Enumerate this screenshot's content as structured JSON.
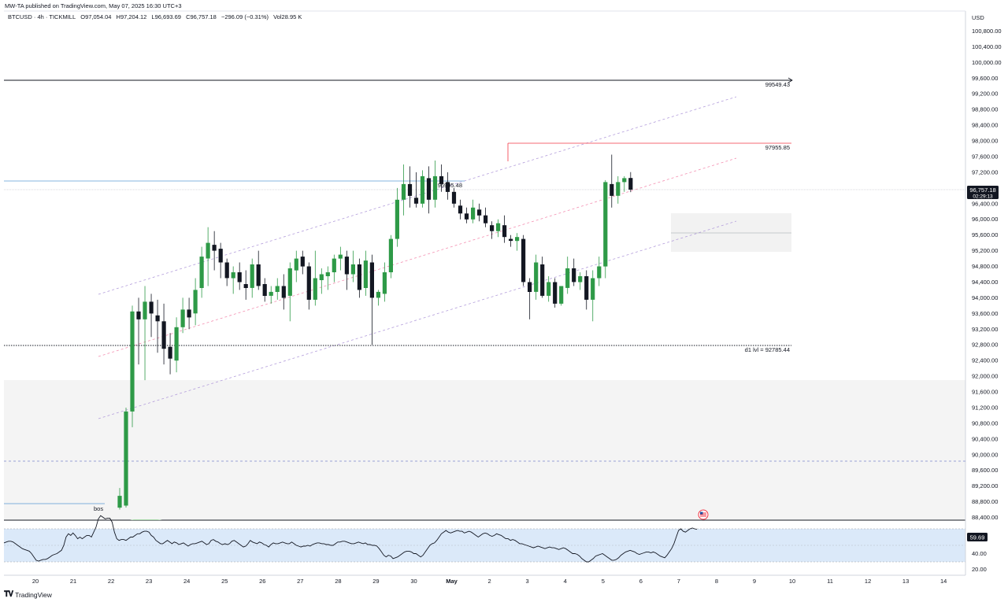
{
  "header": {
    "published": "MW-TA published on TradingView.com, May 07, 2025 16:30 UTC+3",
    "symbol": "BTCUSD · 4h · TICKMILL",
    "open": "O97,054.04",
    "high": "H97,204.12",
    "low": "L96,693.69",
    "close": "C96,757.18",
    "change": "−296.09 (−0.31%)",
    "volume": "Vol28.95 K"
  },
  "price_axis": {
    "currency": "USD",
    "ticks": [
      "100,800.00",
      "100,400.00",
      "100,000.00",
      "99,600.00",
      "99,200.00",
      "98,800.00",
      "98,400.00",
      "98,000.00",
      "97,600.00",
      "97,200.00",
      "96,400.00",
      "96,000.00",
      "95,600.00",
      "95,200.00",
      "94,800.00",
      "94,400.00",
      "94,000.00",
      "93,600.00",
      "93,200.00",
      "92,800.00",
      "92,400.00",
      "92,000.00",
      "91,600.00",
      "91,200.00",
      "90,800.00",
      "90,400.00",
      "90,000.00",
      "89,600.00",
      "89,200.00",
      "88,800.00",
      "88,400.00"
    ],
    "current_price": "96,757.18",
    "countdown": "02:29:13"
  },
  "rsi_axis": {
    "ticks": [
      "40.00",
      "20.00"
    ],
    "current": "59.69"
  },
  "time_axis": {
    "labels": [
      "20",
      "21",
      "22",
      "23",
      "24",
      "25",
      "26",
      "27",
      "28",
      "29",
      "30",
      "May",
      "2",
      "3",
      "4",
      "5",
      "6",
      "7",
      "8",
      "9",
      "10",
      "11",
      "12",
      "13",
      "14"
    ]
  },
  "annotations": {
    "level_high": "99549.43",
    "level_red": "97955.85",
    "level_blue": "96995.48",
    "level_d1": "d1 lvl = 92785.44",
    "bos": "bos"
  },
  "colors": {
    "up": "#2e9a47",
    "down": "#131722",
    "accent_blue": "#2962ff",
    "red_line": "#f23645",
    "rsi_band": "#dbe9f9"
  },
  "footer": {
    "brand": "TradingView"
  },
  "chart_data": {
    "type": "candlestick",
    "title": "BTCUSD · 4h · TICKMILL",
    "y_unit": "USD",
    "ylim": [
      88300,
      101050
    ],
    "x_labels": [
      "20",
      "21",
      "22",
      "23",
      "24",
      "25",
      "26",
      "27",
      "28",
      "29",
      "30",
      "May",
      "2",
      "3",
      "4",
      "5",
      "6",
      "7",
      "8",
      "9",
      "10",
      "11",
      "12",
      "13",
      "14"
    ],
    "candles": [
      [
        88650,
        89150,
        88600,
        88950
      ],
      [
        88700,
        91200,
        88650,
        91100
      ],
      [
        91100,
        93800,
        90700,
        93650
      ],
      [
        93650,
        94000,
        92300,
        93450
      ],
      [
        93450,
        94300,
        91900,
        93900
      ],
      [
        93900,
        94100,
        93000,
        93600
      ],
      [
        93550,
        93950,
        92600,
        93400
      ],
      [
        93400,
        93850,
        92300,
        92700
      ],
      [
        92750,
        93100,
        92050,
        92450
      ],
      [
        92400,
        93500,
        92100,
        93250
      ],
      [
        93250,
        94000,
        93100,
        93700
      ],
      [
        93700,
        94000,
        93200,
        93500
      ],
      [
        93600,
        94500,
        93300,
        94200
      ],
      [
        94250,
        95300,
        94000,
        95050
      ],
      [
        95000,
        95800,
        94300,
        95400
      ],
      [
        95350,
        95700,
        94700,
        95200
      ],
      [
        95250,
        95400,
        94500,
        94900
      ],
      [
        94900,
        95000,
        94300,
        94500
      ],
      [
        94500,
        94800,
        94100,
        94650
      ],
      [
        94650,
        94900,
        94200,
        94400
      ],
      [
        94350,
        94700,
        93950,
        94250
      ],
      [
        94250,
        95000,
        94000,
        94850
      ],
      [
        94850,
        95200,
        94200,
        94300
      ],
      [
        94350,
        94500,
        93900,
        94050
      ],
      [
        94050,
        94300,
        93850,
        94150
      ],
      [
        94150,
        94500,
        93950,
        94300
      ],
      [
        94300,
        94600,
        93700,
        94000
      ],
      [
        94050,
        94900,
        93400,
        94750
      ],
      [
        94700,
        95200,
        94400,
        95000
      ],
      [
        95050,
        95200,
        94600,
        94800
      ],
      [
        94800,
        94900,
        93700,
        93950
      ],
      [
        93950,
        95200,
        93800,
        94500
      ],
      [
        94450,
        94750,
        94100,
        94600
      ],
      [
        94550,
        94800,
        94200,
        94650
      ],
      [
        94650,
        95100,
        94400,
        95000
      ],
      [
        95000,
        95300,
        94700,
        95100
      ],
      [
        95050,
        95200,
        94200,
        94600
      ],
      [
        94600,
        95200,
        94400,
        94850
      ],
      [
        94850,
        95000,
        94000,
        94200
      ],
      [
        94250,
        95200,
        94050,
        94950
      ],
      [
        94900,
        95100,
        92800,
        94000
      ],
      [
        94000,
        94200,
        93800,
        94150
      ],
      [
        94100,
        94900,
        93900,
        94650
      ],
      [
        94650,
        95600,
        94500,
        95500
      ],
      [
        95500,
        96800,
        95300,
        96500
      ],
      [
        96500,
        97400,
        96100,
        96900
      ],
      [
        96900,
        97350,
        96300,
        96600
      ],
      [
        96550,
        97200,
        96300,
        96400
      ],
      [
        96400,
        97250,
        96300,
        97100
      ],
      [
        97050,
        97350,
        96150,
        96500
      ],
      [
        96500,
        97500,
        96300,
        97100
      ],
      [
        97100,
        97400,
        96700,
        96900
      ],
      [
        96950,
        97200,
        96500,
        96700
      ],
      [
        96700,
        96800,
        96300,
        96400
      ],
      [
        96350,
        96500,
        96000,
        96150
      ],
      [
        96150,
        96300,
        95900,
        96000
      ],
      [
        96000,
        96500,
        95900,
        96300
      ],
      [
        96250,
        96400,
        95950,
        96100
      ],
      [
        96100,
        96300,
        95800,
        95900
      ],
      [
        95850,
        95950,
        95500,
        95700
      ],
      [
        95700,
        96000,
        95550,
        95900
      ],
      [
        95850,
        96100,
        95400,
        95550
      ],
      [
        95500,
        95600,
        95300,
        95450
      ],
      [
        95450,
        95650,
        95200,
        95550
      ],
      [
        95500,
        95600,
        94300,
        94400
      ],
      [
        94400,
        94500,
        93450,
        94150
      ],
      [
        94150,
        95100,
        93950,
        94900
      ],
      [
        94850,
        95050,
        94000,
        94050
      ],
      [
        94050,
        94550,
        93900,
        94400
      ],
      [
        94400,
        94500,
        93750,
        93850
      ],
      [
        93850,
        94300,
        93800,
        94300
      ],
      [
        94250,
        95050,
        94100,
        94750
      ],
      [
        94750,
        95000,
        94300,
        94400
      ],
      [
        94400,
        94650,
        94200,
        94550
      ],
      [
        94550,
        94700,
        93700,
        93950
      ],
      [
        93950,
        94700,
        93400,
        94500
      ],
      [
        94500,
        95050,
        94300,
        94800
      ],
      [
        94800,
        97000,
        94500,
        96950
      ],
      [
        96900,
        97650,
        96300,
        96600
      ],
      [
        96600,
        97100,
        96400,
        96950
      ],
      [
        96950,
        97100,
        96700,
        97050
      ],
      [
        97054.04,
        97204.12,
        96693.69,
        96757.18
      ]
    ],
    "levels": [
      {
        "label": "99549.43",
        "value": 99549.43
      },
      {
        "label": "97955.85",
        "value": 97955.85
      },
      {
        "label": "96995.48",
        "value": 96995.48
      },
      {
        "label": "d1 lvl = 92785.44",
        "value": 92785.44
      }
    ],
    "rsi": {
      "last": 59.69,
      "values": [
        51.5,
        52,
        52.5,
        52.5,
        52,
        51,
        50,
        49,
        48,
        47.5,
        47,
        46.5,
        45,
        43,
        41,
        40.5,
        41,
        41.5,
        41.5,
        42,
        43,
        44,
        44.5,
        45,
        46,
        47,
        50,
        55,
        57,
        56,
        57.5,
        56,
        54,
        55,
        54,
        55,
        56,
        56,
        55,
        58,
        61,
        66,
        68,
        67,
        66,
        66.5,
        66.5,
        64,
        58,
        54,
        53,
        53.5,
        53.5,
        53,
        54,
        55,
        55,
        56,
        57,
        57,
        58,
        58.5,
        58.5,
        58,
        56,
        55,
        53,
        52,
        51,
        51,
        52,
        53,
        52,
        51,
        52,
        51.5,
        50.5,
        51,
        51.5,
        50.5,
        49.5,
        50.5,
        51,
        51,
        51.5,
        52,
        52.5,
        51.5,
        50.5,
        51,
        53,
        53.5,
        52.5,
        52,
        51,
        50.5,
        51,
        50.5,
        51,
        52.5,
        53,
        52,
        51,
        50,
        49,
        49.5,
        51,
        53,
        52,
        51.5,
        51,
        52,
        51.5,
        50.5,
        50,
        49,
        50.5,
        51.5,
        51,
        51,
        51.5,
        52,
        51.5,
        51,
        51,
        52,
        51,
        50,
        49.5,
        49,
        49.5,
        49.5,
        50,
        49.5,
        50.5,
        51,
        51.5,
        51.5,
        51,
        51,
        50.5,
        50.5,
        50,
        50,
        51,
        52,
        52,
        52.5,
        52.5,
        52,
        51.5,
        51,
        51,
        51.5,
        52,
        51.5,
        51,
        51.5,
        50.5,
        50.5,
        50,
        50,
        49.5,
        48,
        46,
        44,
        43,
        44,
        43.5,
        42,
        42.5,
        43,
        44,
        45,
        46,
        46.5,
        46.5,
        46,
        45,
        45,
        44,
        43,
        44,
        46,
        48,
        50,
        51,
        51.5,
        53,
        55,
        57,
        58,
        59,
        58,
        57.5,
        58,
        58.5,
        59,
        58.5,
        58.5,
        57.5,
        58,
        58.5,
        58,
        57,
        56,
        55,
        56,
        57,
        57.5,
        57,
        56,
        55.5,
        56,
        57,
        56.5,
        56,
        55,
        54,
        54,
        53,
        53.5,
        53,
        52,
        51,
        51,
        50.5,
        50,
        49.5,
        49,
        48.5,
        49,
        49.5,
        49,
        48.5,
        48,
        48.5,
        49,
        48.5,
        48.5,
        48,
        47.5,
        48,
        48.5,
        48,
        47,
        46,
        45,
        45,
        44.5,
        43.5,
        42,
        41,
        40,
        40,
        41,
        42,
        43.5,
        44,
        44.5,
        45,
        44,
        43,
        42,
        41,
        41,
        41.5,
        42.5,
        44,
        45,
        46,
        46.5,
        47,
        46.5,
        46,
        45,
        44.5,
        45,
        45.5,
        46,
        46,
        45.5,
        46,
        45.5,
        44.5,
        43.5,
        43,
        42.5,
        44,
        46,
        48,
        51,
        55,
        59,
        60,
        58.5,
        58,
        59,
        60,
        60.5,
        60,
        59.69
      ]
    }
  }
}
